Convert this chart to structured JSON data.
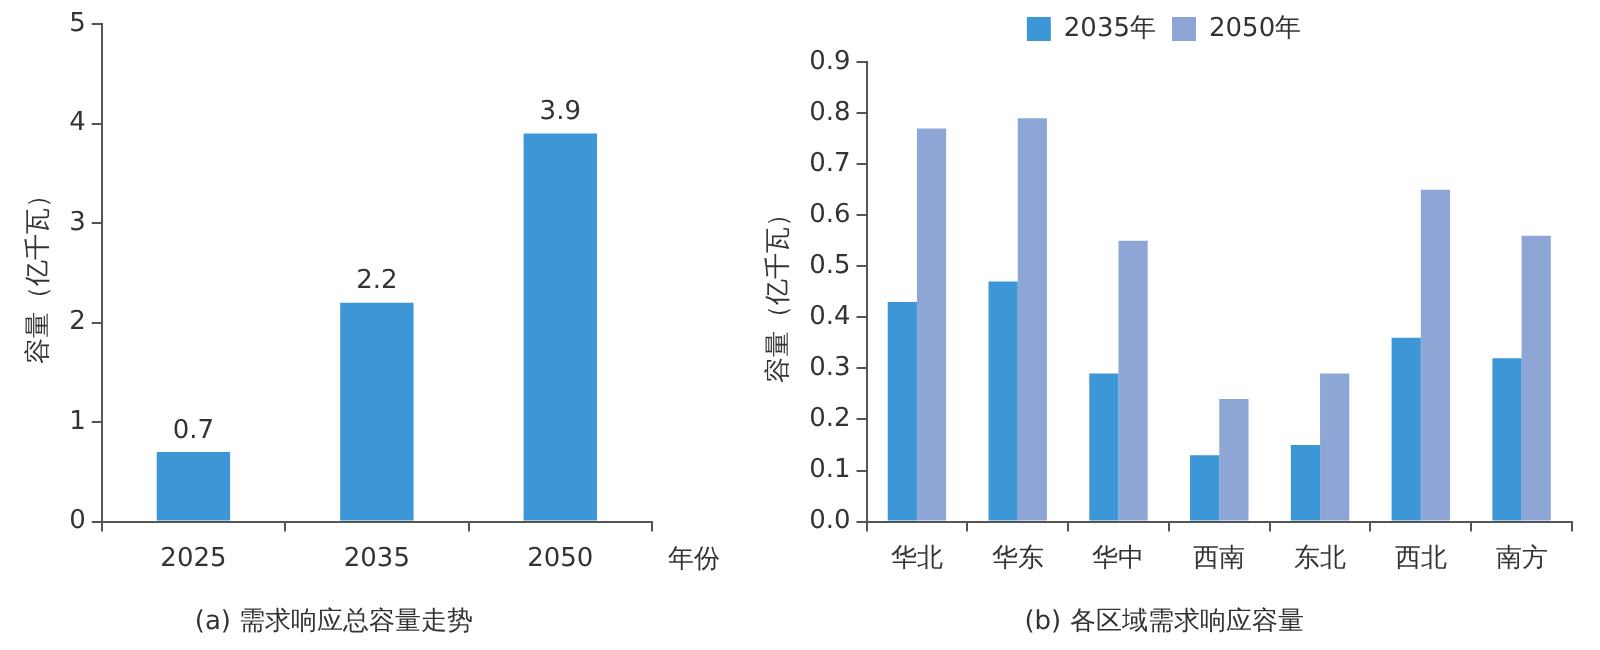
{
  "chart_data": [
    {
      "type": "bar",
      "title": "(a) 需求响应总容量走势",
      "xlabel": "年份",
      "ylabel": "容量（亿千瓦）",
      "categories": [
        "2025",
        "2035",
        "2050"
      ],
      "values": [
        0.7,
        2.2,
        3.9
      ],
      "color": "#3d97d6",
      "ylim": [
        0,
        5
      ],
      "yticks": [
        0,
        1,
        2,
        3,
        4,
        5
      ],
      "data_labels": true,
      "grid": false,
      "legend": false
    },
    {
      "type": "bar",
      "title": "(b) 各区域需求响应容量",
      "ylabel": "容量（亿千瓦）",
      "categories": [
        "华北",
        "华东",
        "华中",
        "西南",
        "东北",
        "西北",
        "南方"
      ],
      "series": [
        {
          "name": "2035年",
          "color": "#3d97d6",
          "values": [
            0.43,
            0.47,
            0.29,
            0.13,
            0.15,
            0.36,
            0.32
          ]
        },
        {
          "name": "2050年",
          "color": "#8ea6d6",
          "values": [
            0.77,
            0.79,
            0.55,
            0.24,
            0.29,
            0.65,
            0.56
          ]
        }
      ],
      "ylim": [
        0,
        0.9
      ],
      "yticks": [
        {
          "value": 0,
          "label": "0.0"
        },
        {
          "value": 0.1,
          "label": "0.1"
        },
        {
          "value": 0.2,
          "label": "0.2"
        },
        {
          "value": 0.3,
          "label": "0.3"
        },
        {
          "value": 0.4,
          "label": "0.4"
        },
        {
          "value": 0.5,
          "label": "0.5"
        },
        {
          "value": 0.6,
          "label": "0.6"
        },
        {
          "value": 0.7,
          "label": "0.7"
        },
        {
          "value": 0.8,
          "label": "0.8"
        },
        {
          "value": 0.9,
          "label": "0.9"
        }
      ],
      "grid": false,
      "legend": "top"
    }
  ]
}
